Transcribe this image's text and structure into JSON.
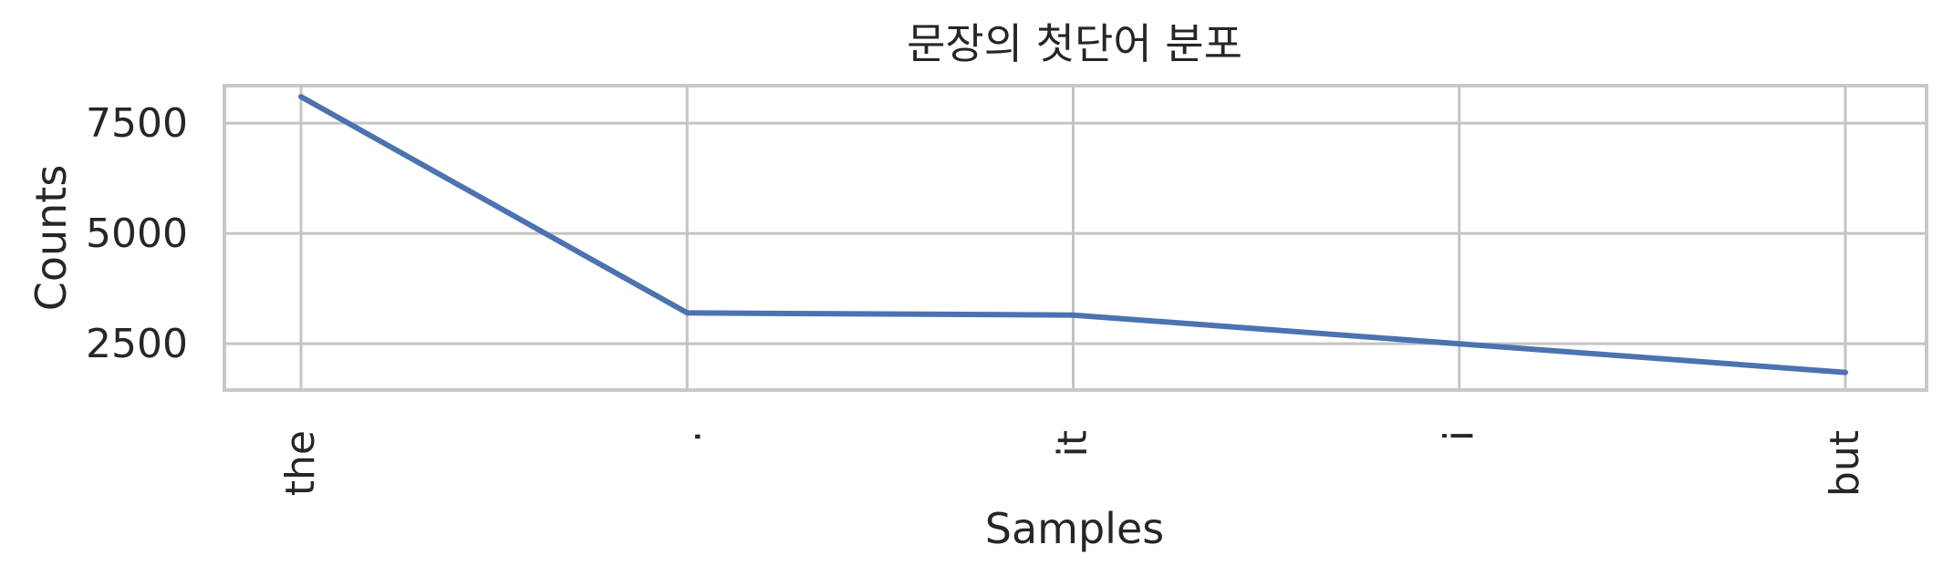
{
  "chart_data": {
    "type": "line",
    "title": "문장의 첫단어 분포",
    "xlabel": "Samples",
    "ylabel": "Counts",
    "categories": [
      "the",
      ".",
      "it",
      "i",
      "but"
    ],
    "series": [
      {
        "values": [
          8100,
          3200,
          3150,
          2500,
          1850
        ]
      }
    ],
    "yticks": [
      2500,
      5000,
      7500
    ],
    "ylim": [
      1450,
      8350
    ],
    "grid": true,
    "x_tick_rotation": -90,
    "line_color": "#4c72b0"
  }
}
